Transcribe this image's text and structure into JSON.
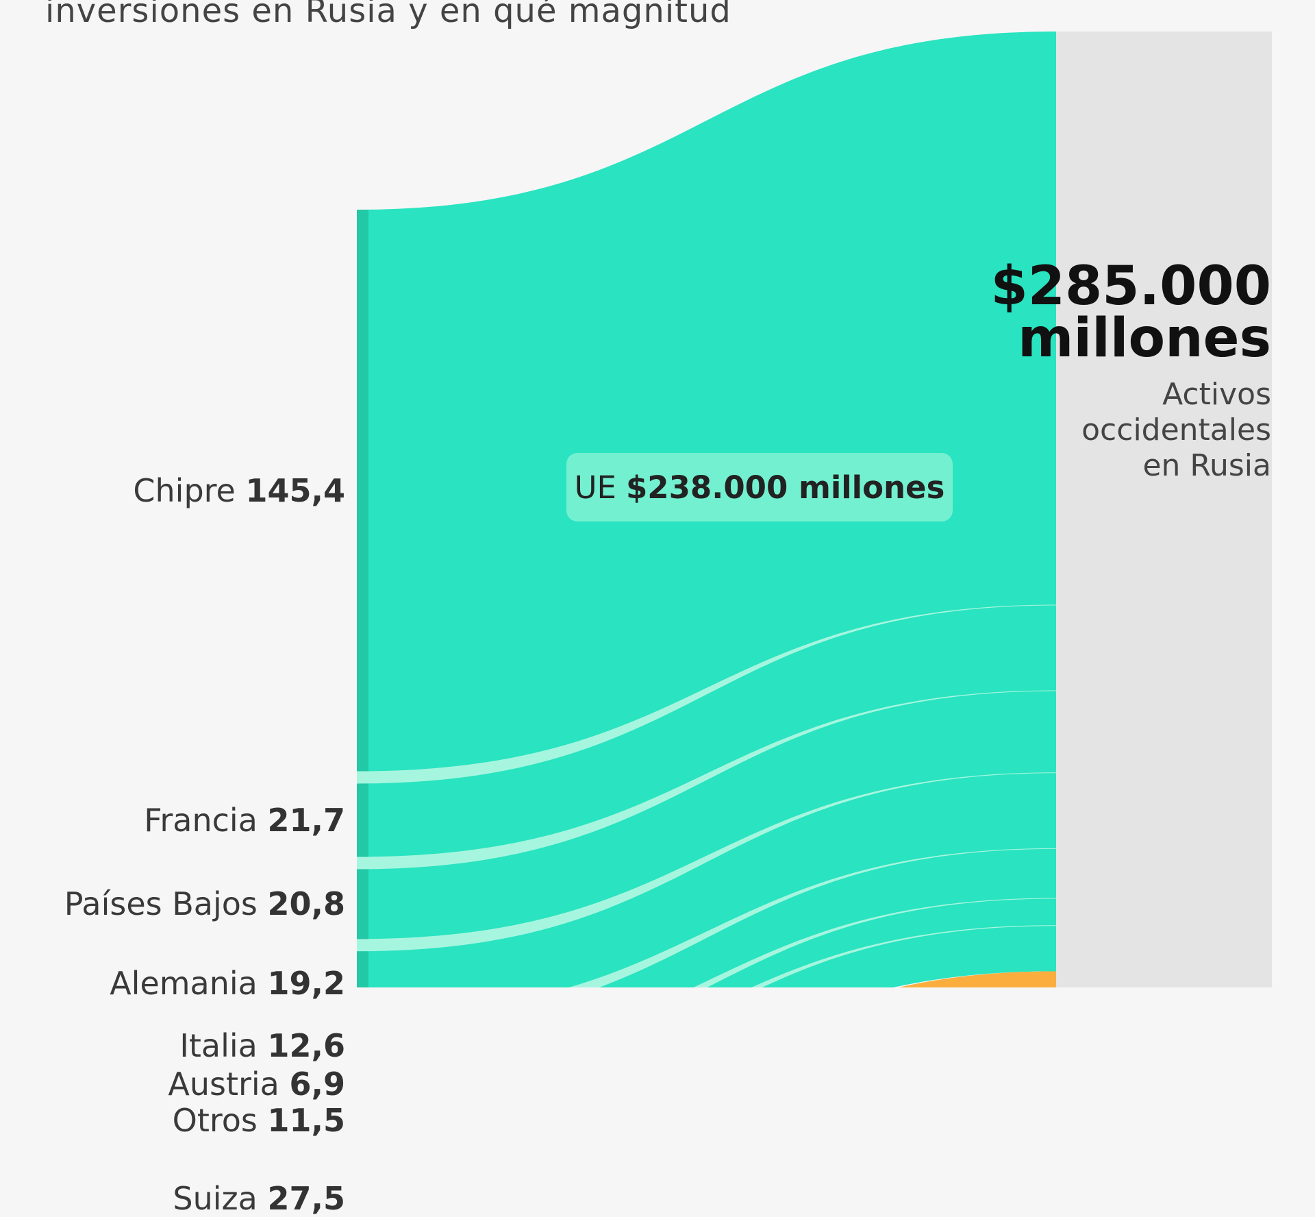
{
  "subtitle": "inversiones en Rusia y en qué magnitud",
  "eu_box": {
    "prefix": "UE",
    "value": "$238.000 millones"
  },
  "total": {
    "value_line1": "$285.000",
    "value_line2": "millones",
    "desc_line1": "Activos",
    "desc_line2": "occidentales",
    "desc_line3": "en Rusia"
  },
  "colors": {
    "eu": "#2ae3c0",
    "eu_light": "#a6f6df",
    "non_eu": "#fbae3e",
    "non_eu_light": "#fdd08c",
    "total_bar": "#e4e4e4",
    "background": "#f6f6f6"
  },
  "chart_data": {
    "type": "sankey",
    "unit": "miles de millones de $",
    "target": "Activos occidentales en Rusia",
    "target_total": 285,
    "eu_total": 238,
    "flows": [
      {
        "name": "Chipre",
        "label": "145,4",
        "value": 145.4,
        "group": "UE"
      },
      {
        "name": "Francia",
        "label": "21,7",
        "value": 21.7,
        "group": "UE"
      },
      {
        "name": "Países Bajos",
        "label": "20,8",
        "value": 20.8,
        "group": "UE"
      },
      {
        "name": "Alemania",
        "label": "19,2",
        "value": 19.2,
        "group": "UE"
      },
      {
        "name": "Italia",
        "label": "12,6",
        "value": 12.6,
        "group": "UE"
      },
      {
        "name": "Austria",
        "label": "6,9",
        "value": 6.9,
        "group": "UE"
      },
      {
        "name": "Otros",
        "label": "11,5",
        "value": 11.5,
        "group": "UE"
      },
      {
        "name": "Suiza",
        "label": "27,5",
        "value": 27.5,
        "group": "no-UE"
      }
    ]
  }
}
